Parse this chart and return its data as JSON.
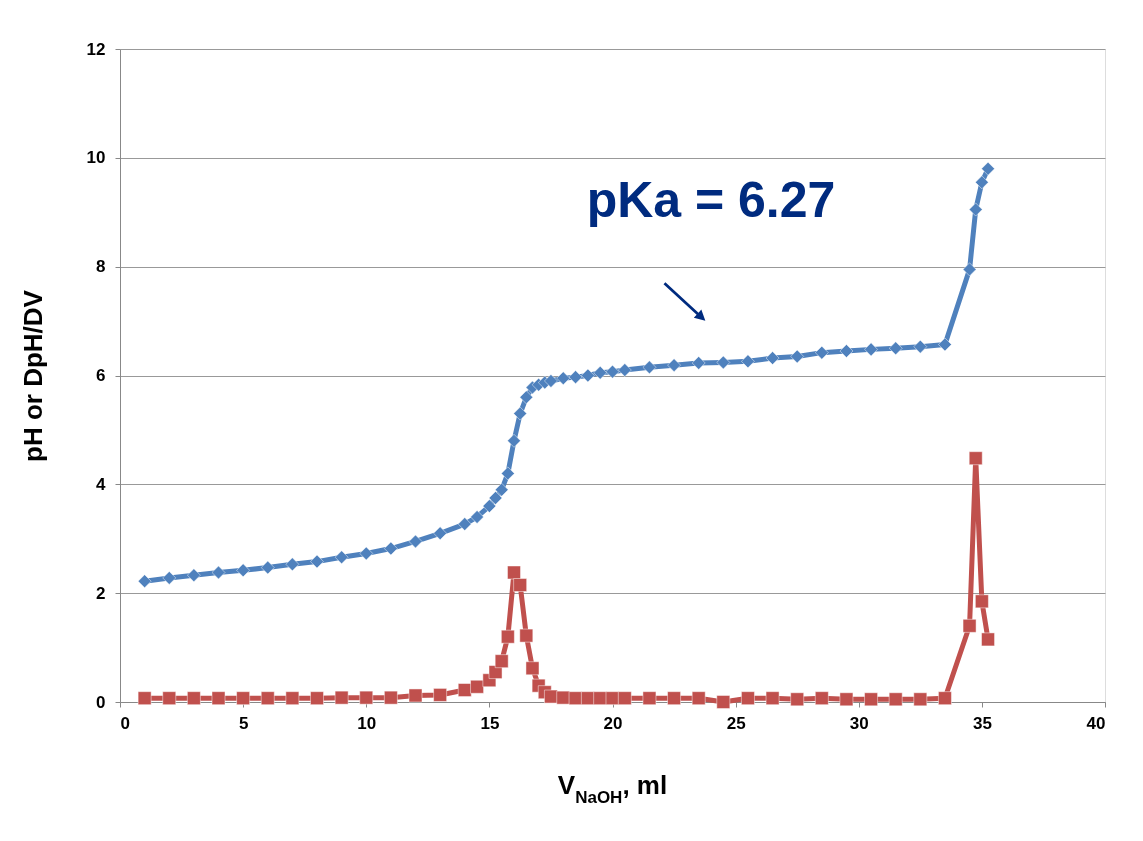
{
  "chart_data": {
    "type": "line",
    "xlabel": "V$_{NaOH}$, ml",
    "ylabel": "pH or DpH/DV",
    "x": [
      1,
      2,
      3,
      4,
      5,
      6,
      7,
      8,
      9,
      10,
      11,
      12,
      13,
      14,
      14.5,
      15,
      15.25,
      15.5,
      15.75,
      16,
      16.25,
      16.5,
      16.75,
      17,
      17.25,
      17.5,
      18,
      18.5,
      19,
      19.5,
      20,
      20.5,
      21.5,
      22.5,
      23.5,
      24.5,
      25.5,
      26.5,
      27.5,
      28.5,
      29.5,
      30.5,
      31.5,
      32.5,
      33.5,
      34.5,
      34.75,
      35,
      35.25
    ],
    "series": [
      {
        "color": "#4f81bd",
        "marker": "diamond",
        "values": [
          2.22,
          2.28,
          2.33,
          2.38,
          2.42,
          2.47,
          2.53,
          2.58,
          2.66,
          2.73,
          2.82,
          2.95,
          3.1,
          3.27,
          3.4,
          3.6,
          3.75,
          3.9,
          4.2,
          4.8,
          5.3,
          5.6,
          5.78,
          5.83,
          5.87,
          5.9,
          5.95,
          5.97,
          6.0,
          6.05,
          6.07,
          6.1,
          6.15,
          6.19,
          6.23,
          6.24,
          6.26,
          6.32,
          6.35,
          6.42,
          6.45,
          6.48,
          6.5,
          6.53,
          6.57,
          7.95,
          9.05,
          9.55,
          9.8
        ]
      },
      {
        "color": "#c0504d",
        "marker": "square",
        "values": [
          0.07,
          0.07,
          0.07,
          0.07,
          0.07,
          0.07,
          0.07,
          0.07,
          0.08,
          0.08,
          0.08,
          0.12,
          0.13,
          0.22,
          0.28,
          0.4,
          0.55,
          0.75,
          1.2,
          2.38,
          2.15,
          1.22,
          0.62,
          0.3,
          0.18,
          0.1,
          0.08,
          0.07,
          0.07,
          0.07,
          0.07,
          0.07,
          0.07,
          0.07,
          0.07,
          0.0,
          0.07,
          0.07,
          0.05,
          0.07,
          0.05,
          0.05,
          0.05,
          0.05,
          0.07,
          1.4,
          4.48,
          1.85,
          1.15
        ]
      }
    ],
    "xlim": [
      0,
      40
    ],
    "xticks": [
      0,
      5,
      10,
      15,
      20,
      25,
      30,
      35,
      40
    ],
    "ylim": [
      0,
      12
    ],
    "yticks": [
      0,
      2,
      4,
      6,
      8,
      10,
      12
    ],
    "grid": "y",
    "line_style": "solid",
    "annotations": [
      "pKa = 6.27"
    ]
  }
}
